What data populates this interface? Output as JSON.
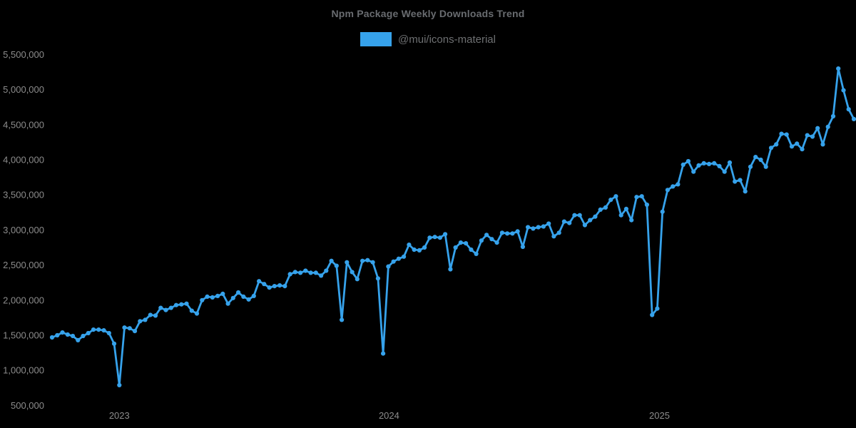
{
  "page": {
    "background": "#000000"
  },
  "chart_data": {
    "type": "line",
    "title": "Npm Package Weekly Downloads Trend",
    "legend_position": "top",
    "grid": false,
    "x_tick_labels": [
      "2023",
      "2024",
      "2025"
    ],
    "y_axis": {
      "ticks": [
        500000,
        1000000,
        1500000,
        2000000,
        2500000,
        3000000,
        3500000,
        4000000,
        4500000,
        5000000,
        5500000
      ],
      "format": "comma"
    },
    "series": [
      {
        "name": "@mui/icons-material",
        "color": "#36a2eb",
        "start_date": "2022-10-02",
        "interval_days": 7,
        "values": [
          1470000,
          1500000,
          1540000,
          1510000,
          1490000,
          1430000,
          1490000,
          1530000,
          1580000,
          1580000,
          1570000,
          1530000,
          1380000,
          790000,
          1610000,
          1600000,
          1560000,
          1700000,
          1720000,
          1790000,
          1780000,
          1890000,
          1860000,
          1890000,
          1930000,
          1940000,
          1950000,
          1850000,
          1810000,
          2000000,
          2050000,
          2040000,
          2060000,
          2090000,
          1950000,
          2030000,
          2110000,
          2050000,
          2010000,
          2060000,
          2270000,
          2230000,
          2180000,
          2200000,
          2210000,
          2200000,
          2370000,
          2400000,
          2390000,
          2420000,
          2390000,
          2390000,
          2350000,
          2420000,
          2560000,
          2490000,
          1720000,
          2540000,
          2400000,
          2300000,
          2560000,
          2570000,
          2540000,
          2310000,
          1240000,
          2480000,
          2550000,
          2590000,
          2620000,
          2790000,
          2720000,
          2710000,
          2750000,
          2890000,
          2900000,
          2890000,
          2940000,
          2440000,
          2750000,
          2820000,
          2810000,
          2720000,
          2660000,
          2850000,
          2930000,
          2870000,
          2820000,
          2960000,
          2950000,
          2950000,
          2980000,
          2760000,
          3040000,
          3020000,
          3040000,
          3050000,
          3090000,
          2910000,
          2960000,
          3120000,
          3100000,
          3210000,
          3210000,
          3070000,
          3140000,
          3190000,
          3290000,
          3320000,
          3430000,
          3480000,
          3210000,
          3300000,
          3140000,
          3470000,
          3480000,
          3360000,
          1790000,
          1880000,
          3260000,
          3570000,
          3620000,
          3650000,
          3930000,
          3980000,
          3830000,
          3920000,
          3950000,
          3940000,
          3950000,
          3910000,
          3830000,
          3960000,
          3690000,
          3710000,
          3550000,
          3900000,
          4040000,
          4000000,
          3900000,
          4170000,
          4220000,
          4370000,
          4360000,
          4190000,
          4230000,
          4150000,
          4350000,
          4330000,
          4450000,
          4220000,
          4470000,
          4620000,
          5300000,
          4990000,
          4720000,
          4580000
        ]
      }
    ]
  }
}
